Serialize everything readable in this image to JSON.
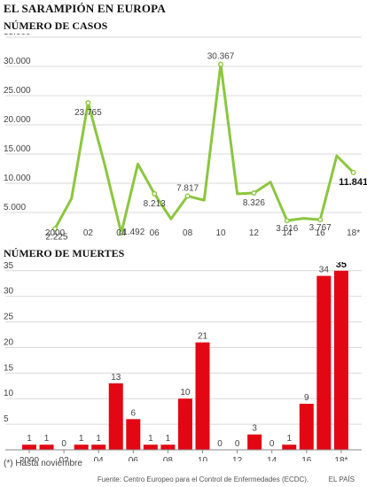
{
  "title": "EL SARAMPIÓN EN EUROPA",
  "footnote": "(*) Hasta noviembre",
  "source": "Fuente: Centro Europeo para el Control de Enfermedades (ECDC).",
  "publisher": "EL PAÍS",
  "colors": {
    "line": "#8cc63f",
    "bar": "#e30613",
    "grid": "#d9d9d9",
    "text": "#444444"
  },
  "chart_data": [
    {
      "type": "line",
      "title": "NÚMERO DE CASOS",
      "x": [
        "2000",
        "2001",
        "2002",
        "2003",
        "2004",
        "2005",
        "2006",
        "2007",
        "2008",
        "2009",
        "2010",
        "2011",
        "2012",
        "2013",
        "2014",
        "2015",
        "2016",
        "2017",
        "2018*"
      ],
      "values": [
        2225,
        7400,
        23765,
        13200,
        1492,
        13300,
        8213,
        3900,
        7817,
        7100,
        30367,
        8200,
        8326,
        10200,
        3616,
        4000,
        3767,
        14700,
        11841
      ],
      "labels": [
        {
          "i": 0,
          "text": "2.225"
        },
        {
          "i": 2,
          "text": "23.765"
        },
        {
          "i": 4,
          "text": "1.492"
        },
        {
          "i": 6,
          "text": "8.213"
        },
        {
          "i": 8,
          "text": "7.817"
        },
        {
          "i": 10,
          "text": "30.367"
        },
        {
          "i": 12,
          "text": "8.326"
        },
        {
          "i": 14,
          "text": "3.616"
        },
        {
          "i": 16,
          "text": "3.767"
        },
        {
          "i": 18,
          "text": "11.841",
          "bold": true
        }
      ],
      "marker_indices": [
        0,
        2,
        4,
        6,
        8,
        10,
        12,
        14,
        16,
        18
      ],
      "yticks": [
        "5.000",
        "10.000",
        "15.000",
        "20.000",
        "25.000",
        "30.000",
        "35.000"
      ],
      "ytick_values": [
        5000,
        10000,
        15000,
        20000,
        25000,
        30000,
        35000
      ],
      "xtick_labels": [
        "2000",
        "02",
        "04",
        "06",
        "08",
        "10",
        "12",
        "14",
        "16",
        "18*"
      ],
      "ylim": [
        0,
        35000
      ],
      "grid": true
    },
    {
      "type": "bar",
      "title": "NÚMERO DE MUERTES",
      "x": [
        "2000",
        "2001",
        "2002",
        "2003",
        "2004",
        "2005",
        "2006",
        "2007",
        "2008",
        "2009",
        "2010",
        "2011",
        "2012",
        "2013",
        "2014",
        "2015",
        "2016",
        "2017",
        "2018*"
      ],
      "values": [
        1,
        1,
        0,
        1,
        1,
        13,
        6,
        1,
        1,
        10,
        21,
        0,
        0,
        3,
        0,
        1,
        9,
        34,
        35
      ],
      "bold_last": true,
      "yticks": [
        "5",
        "10",
        "15",
        "20",
        "25",
        "30",
        "35"
      ],
      "ytick_values": [
        5,
        10,
        15,
        20,
        25,
        30,
        35
      ],
      "xtick_labels": [
        "2000",
        "02",
        "04",
        "06",
        "08",
        "10",
        "12",
        "14",
        "16",
        "18*"
      ],
      "ylim": [
        0,
        36
      ],
      "grid": true
    }
  ]
}
